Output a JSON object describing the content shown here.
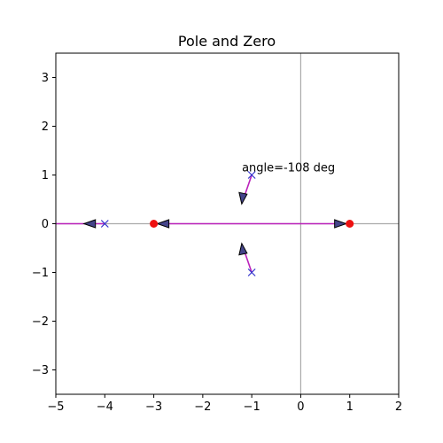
{
  "chart_data": {
    "type": "scatter",
    "title": "Pole and Zero",
    "xlabel": "",
    "ylabel": "",
    "xlim": [
      -5,
      2
    ],
    "ylim": [
      -3.5,
      3.5
    ],
    "xticks": [
      -5,
      -4,
      -3,
      -2,
      -1,
      0,
      1,
      2
    ],
    "yticks": [
      -3,
      -2,
      -1,
      0,
      1,
      2,
      3
    ],
    "grid": false,
    "poles": [
      {
        "x": -1,
        "y": 1
      },
      {
        "x": -1,
        "y": -1
      },
      {
        "x": -4,
        "y": 0
      }
    ],
    "zeros": [
      {
        "x": -3,
        "y": 0
      },
      {
        "x": 1,
        "y": 0
      }
    ],
    "real_axis_locus": [
      {
        "from": -5,
        "to": -4
      },
      {
        "from": -3,
        "to": 1
      }
    ],
    "branches": [
      {
        "from": {
          "x": -1,
          "y": 1
        },
        "to": {
          "x": -1.2,
          "y": 0.42
        }
      },
      {
        "from": {
          "x": -1,
          "y": -1
        },
        "to": {
          "x": -1.2,
          "y": -0.42
        }
      }
    ],
    "direction_arrows": [
      {
        "x": -4.3,
        "y": 0,
        "dir": "left"
      },
      {
        "x": -2.8,
        "y": 0,
        "dir": "left"
      },
      {
        "x": 0.8,
        "y": 0,
        "dir": "right"
      },
      {
        "x": -1.15,
        "y": 0.55,
        "dir": "down"
      },
      {
        "x": -1.15,
        "y": -0.55,
        "dir": "up"
      }
    ],
    "annotation": {
      "text": "angle=-108 deg",
      "x": -1.2,
      "y": 1.15
    },
    "colors": {
      "pole": "#3333cc",
      "zero": "#ee1111",
      "locus": "#bb22bb",
      "arrow_fill": "#44448a",
      "axis_line": "#aaaaaa"
    }
  }
}
